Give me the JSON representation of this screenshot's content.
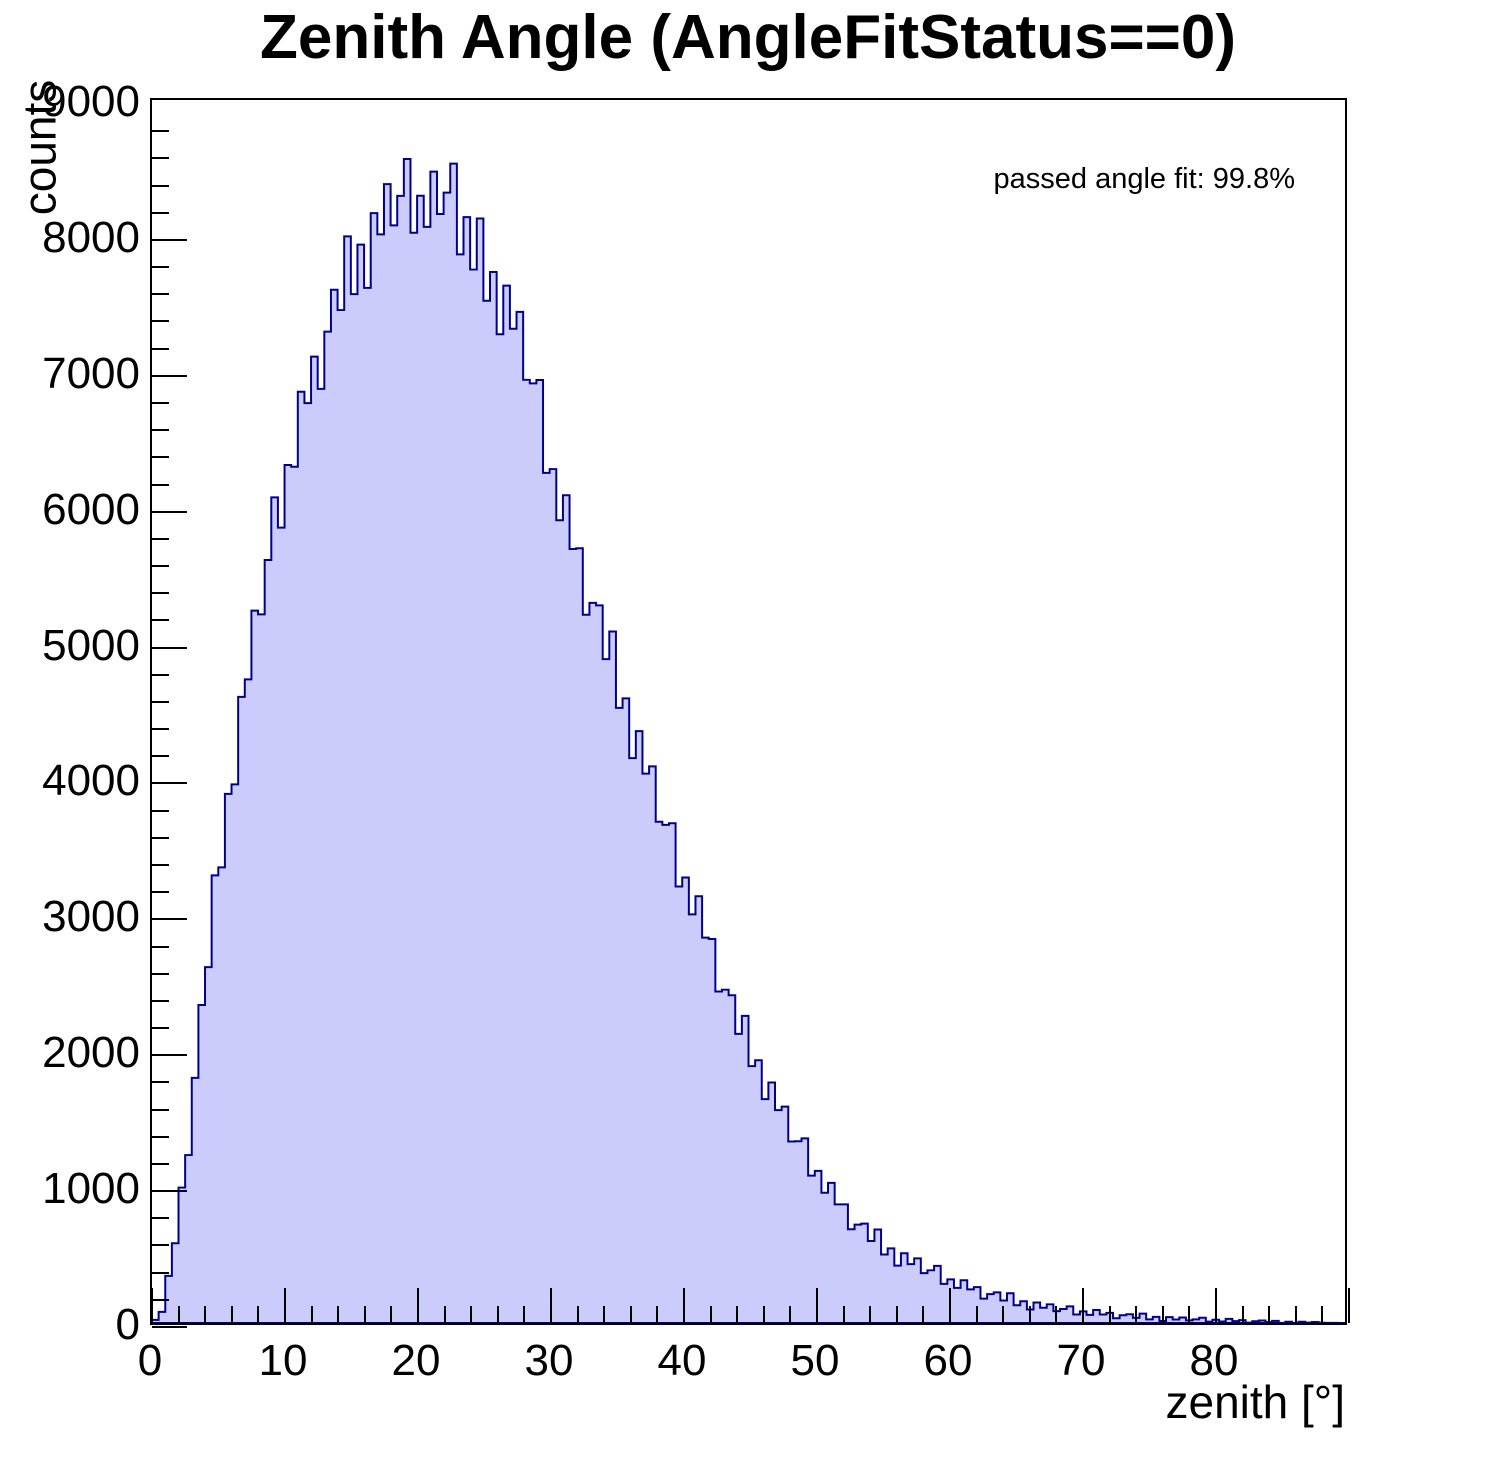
{
  "title": "Zenith Angle (AngleFitStatus==0)",
  "annotation": "passed angle fit: 99.8%",
  "axes": {
    "x_label": "zenith [°]",
    "y_label": "counts",
    "x_major_ticks": [
      0,
      10,
      20,
      30,
      40,
      50,
      60,
      70,
      80
    ],
    "y_major_ticks": [
      0,
      1000,
      2000,
      3000,
      4000,
      5000,
      6000,
      7000,
      8000,
      9000
    ],
    "x_minor_step": 2,
    "y_minor_step": 200
  },
  "chart_data": {
    "type": "bar",
    "title": "Zenith Angle (AngleFitStatus==0)",
    "xlabel": "zenith [°]",
    "ylabel": "counts",
    "xlim": [
      0,
      90
    ],
    "ylim": [
      0,
      9030
    ],
    "grid": false,
    "legend": "none",
    "bin_start": 0,
    "bin_width": 0.5,
    "fill_color": "#ccccfc",
    "line_color": "#00008b",
    "frame_color": "#000000",
    "background_color": "#ffffff",
    "values": [
      23,
      82,
      348,
      589,
      1000,
      1240,
      1810,
      2348,
      2628,
      3305,
      3364,
      3907,
      3977,
      4623,
      4752,
      5260,
      5232,
      5634,
      6096,
      5873,
      6335,
      6322,
      6876,
      6792,
      7135,
      6897,
      7320,
      7629,
      7479,
      8023,
      7597,
      7962,
      7643,
      8195,
      8038,
      8409,
      8104,
      8322,
      8594,
      8050,
      8323,
      8093,
      8501,
      8188,
      8346,
      8560,
      7890,
      8165,
      7778,
      8155,
      7548,
      7760,
      7300,
      7659,
      7341,
      7466,
      6964,
      6938,
      6963,
      6277,
      6305,
      5927,
      6112,
      5715,
      5720,
      5229,
      5317,
      5299,
      4902,
      5106,
      4542,
      4612,
      4171,
      4370,
      4056,
      4110,
      3701,
      3678,
      3690,
      3223,
      3289,
      3017,
      3151,
      2845,
      2835,
      2448,
      2461,
      2420,
      2135,
      2268,
      1897,
      1940,
      1653,
      1776,
      1572,
      1598,
      1340,
      1342,
      1363,
      1088,
      1123,
      962,
      1035,
      876,
      876,
      692,
      726,
      734,
      605,
      690,
      506,
      551,
      424,
      515,
      435,
      477,
      368,
      389,
      422,
      289,
      322,
      259,
      316,
      248,
      265,
      180,
      213,
      226,
      166,
      220,
      131,
      161,
      100,
      151,
      113,
      138,
      88,
      103,
      123,
      63,
      86,
      60,
      96,
      63,
      75,
      35,
      57,
      65,
      38,
      69,
      27,
      45,
      15,
      43,
      26,
      41,
      19,
      27,
      39,
      10,
      24,
      11,
      30,
      14,
      21,
      3,
      13,
      18,
      6,
      16,
      1,
      9,
      1,
      9,
      3,
      7,
      2,
      1,
      1,
      0
    ]
  }
}
